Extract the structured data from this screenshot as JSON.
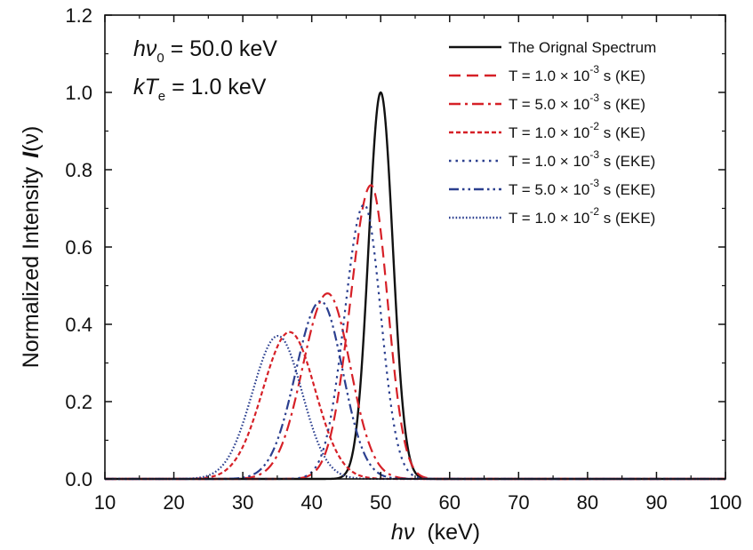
{
  "chart_data": {
    "type": "line",
    "title": "",
    "xlabel": {
      "main": "hν",
      "unit": "(keV)"
    },
    "ylabel": {
      "main": "Normalized Intensity",
      "symbol": "I",
      "arg": "(ν)"
    },
    "xlim": [
      10,
      100
    ],
    "ylim": [
      0,
      1.2
    ],
    "x_ticks": [
      10,
      20,
      30,
      40,
      50,
      60,
      70,
      80,
      90,
      100
    ],
    "y_ticks": [
      0.0,
      0.2,
      0.4,
      0.6,
      0.8,
      1.0,
      1.2
    ],
    "y_tick_labels": [
      "0.0",
      "0.2",
      "0.4",
      "0.6",
      "0.8",
      "1.0",
      "1.2"
    ],
    "grid": false,
    "legend_position": "top-right",
    "annotations": [
      {
        "pre": "hν",
        "sub": "0",
        "post": " = 50.0 keV"
      },
      {
        "pre": "kT",
        "sub": "e",
        "post": " = 1.0 keV"
      }
    ],
    "series": [
      {
        "name": "The Orignal Spectrum",
        "legend": {
          "pre": "The Orignal Spectrum"
        },
        "color": "#111111",
        "dash": "solid",
        "peak_x": 50.0,
        "peak_y": 1.0,
        "sigma_left": 1.75,
        "sigma_right": 1.75
      },
      {
        "name": "T = 1.0 × 10-3 s (KE)",
        "legend": {
          "pre": "T = 1.0 × 10",
          "sup": "-3",
          "post": " s (KE)"
        },
        "color": "#d62027",
        "dash": "dash",
        "peak_x": 48.6,
        "peak_y": 0.76,
        "sigma_left": 3.0,
        "sigma_right": 2.4
      },
      {
        "name": "T = 5.0 × 10-3 s (KE)",
        "legend": {
          "pre": "T = 5.0 × 10",
          "sup": "-3",
          "post": " s (KE)"
        },
        "color": "#d62027",
        "dash": "dashdot",
        "peak_x": 42.3,
        "peak_y": 0.48,
        "sigma_left": 3.6,
        "sigma_right": 3.3
      },
      {
        "name": "T = 1.0 × 10-2 s (KE)",
        "legend": {
          "pre": "T = 1.0 × 10",
          "sup": "-2",
          "post": " s (KE)"
        },
        "color": "#d62027",
        "dash": "shortdash",
        "peak_x": 36.8,
        "peak_y": 0.38,
        "sigma_left": 3.9,
        "sigma_right": 3.7
      },
      {
        "name": "T = 1.0 × 10-3 s (EKE)",
        "legend": {
          "pre": "T = 1.0 × 10",
          "sup": "-3",
          "post": " s (EKE)"
        },
        "color": "#2b3f8f",
        "dash": "dot",
        "peak_x": 47.6,
        "peak_y": 0.71,
        "sigma_left": 2.8,
        "sigma_right": 2.4
      },
      {
        "name": "T = 5.0 × 10-3 s (EKE)",
        "legend": {
          "pre": "T = 5.0 × 10",
          "sup": "-3",
          "post": " s (EKE)"
        },
        "color": "#2b3f8f",
        "dash": "dashdotdot",
        "peak_x": 41.3,
        "peak_y": 0.46,
        "sigma_left": 3.6,
        "sigma_right": 3.2
      },
      {
        "name": "T = 1.0 × 10-2 s (EKE)",
        "legend": {
          "pre": "T = 1.0 × 10",
          "sup": "-2",
          "post": " s (EKE)"
        },
        "color": "#2b3f8f",
        "dash": "densedot",
        "peak_x": 35.1,
        "peak_y": 0.37,
        "sigma_left": 3.7,
        "sigma_right": 3.5
      }
    ]
  }
}
